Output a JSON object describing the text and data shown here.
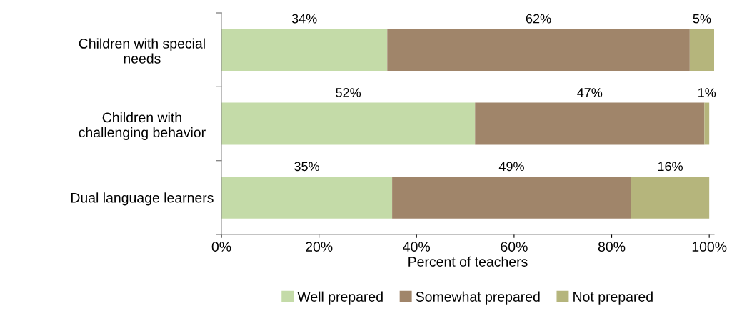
{
  "chart_data": {
    "type": "bar",
    "orientation": "horizontal",
    "stacked": true,
    "xlabel": "Percent of teachers",
    "categories": [
      "Children with special\nneeds",
      "Children with\nchallenging behavior",
      "Dual language learners"
    ],
    "series": [
      {
        "name": "Well prepared",
        "color": "#c4dba8",
        "values": [
          34,
          52,
          35
        ],
        "value_labels": [
          "34%",
          "52%",
          "35%"
        ]
      },
      {
        "name": "Somewhat prepared",
        "color": "#a0856a",
        "values": [
          62,
          47,
          49
        ],
        "value_labels": [
          "62%",
          "47%",
          "49%"
        ]
      },
      {
        "name": "Not prepared",
        "color": "#b5b57c",
        "values": [
          5,
          1,
          16
        ],
        "value_labels": [
          "5%",
          "1%",
          "16%"
        ]
      }
    ],
    "xlim": [
      0,
      101
    ],
    "xticks": [
      {
        "value": 0,
        "label": "0%"
      },
      {
        "value": 20,
        "label": "20%"
      },
      {
        "value": 40,
        "label": "40%"
      },
      {
        "value": 60,
        "label": "60%"
      },
      {
        "value": 80,
        "label": "80%"
      },
      {
        "value": 100,
        "label": "100%"
      }
    ],
    "grid": false,
    "legend": "bottom"
  }
}
